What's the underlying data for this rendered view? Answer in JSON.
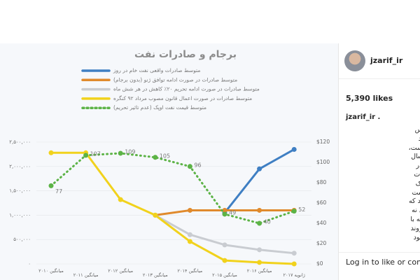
{
  "post": {
    "username": "jzarif_ir",
    "likes": "5,390 likes",
    "caption_user": "jzarif_ir .",
    "caption_lines": [
      "برجام روز شنبه به مجلس",
      "شورای اسلامی ارائه شد",
      "ی ماه به مجلس آمده است،",
      "صادرات نفت ایران در سال",
      "شرایط کنونی صادرات در",
      "توافق موقت ژنو (صادرات",
      "به توافق نهایی برجام (یک",
      "میلیون بشکه در روز) است",
      "قطه چین) نشان می دهد که",
      "، شروع تحریم های نفتی نه",
      "جهانی نفت نینجامید، بلکه با",
      "رفتن سهم بازار ایران، روند",
      "ء ابتدای تحریم ها شده بود"
    ],
    "login_prompt": "Log in to like or comment"
  },
  "chart_data": {
    "type": "line",
    "title": "برجام و صادرات نفت",
    "categories": [
      "میانگین ۲۰۱۰",
      "میانگین ۲۰۱۱",
      "میانگین ۲۰۱۲",
      "میانگین ۲۰۱۳",
      "میانگین ۲۰۱۴",
      "میانگین ۲۰۱۵",
      "میانگین ۲۰۱۶",
      "ژانویه ۲۰۱۷"
    ],
    "series": [
      {
        "name": "متوسط صادرات واقعی نفت خام در روز",
        "color": "#3f7fc3",
        "style": "solid",
        "values": [
          null,
          null,
          null,
          null,
          null,
          1050000,
          1950000,
          2350000
        ]
      },
      {
        "name": "متوسط صادرات در صورت ادامه توافق ژنو (بدون برجام)",
        "color": "#e08a2c",
        "style": "solid",
        "values": [
          null,
          null,
          null,
          1000000,
          1100000,
          1100000,
          1100000,
          1100000
        ]
      },
      {
        "name": "متوسط صادرات در صورت ادامه تحریم ۲۰٪ کاهش در هر شش ماه",
        "color": "#c9ccd1",
        "style": "solid",
        "values": [
          null,
          null,
          null,
          1000000,
          600000,
          390000,
          290000,
          220000
        ]
      },
      {
        "name": "متوسط صادرات در صورت اعمال قانون مصوب مرداد ۹۲ کنگره",
        "color": "#f1d21c",
        "style": "solid",
        "values": [
          2280000,
          2280000,
          1320000,
          1000000,
          460000,
          70000,
          30000,
          0
        ]
      },
      {
        "name": "متوسط قیمت نفت اوپک (عدم تاثیر تحریم)",
        "color": "#5cb346",
        "style": "dotted",
        "axis": "y2",
        "values": [
          77,
          107,
          109,
          105,
          96,
          49,
          40,
          52
        ]
      }
    ],
    "ylim": [
      0,
      2500000
    ],
    "yticks": [
      {
        "value": 0,
        "label": "۰"
      },
      {
        "value": 500000,
        "label": "۵۰۰,۰۰۰"
      },
      {
        "value": 1000000,
        "label": "۱,۰۰۰,۰۰۰"
      },
      {
        "value": 1500000,
        "label": "۱,۵۰۰,۰۰۰"
      },
      {
        "value": 2000000,
        "label": "۲,۰۰۰,۰۰۰"
      },
      {
        "value": 2500000,
        "label": "۲,۵۰۰,۰۰۰"
      }
    ],
    "y2lim": [
      0,
      120
    ],
    "y2ticks": [
      {
        "value": 0,
        "label": "$0"
      },
      {
        "value": 20,
        "label": "$20"
      },
      {
        "value": 40,
        "label": "$40"
      },
      {
        "value": 60,
        "label": "$60"
      },
      {
        "value": 80,
        "label": "$80"
      },
      {
        "value": 100,
        "label": "$100"
      },
      {
        "value": 120,
        "label": "$120"
      }
    ],
    "grid": true
  }
}
